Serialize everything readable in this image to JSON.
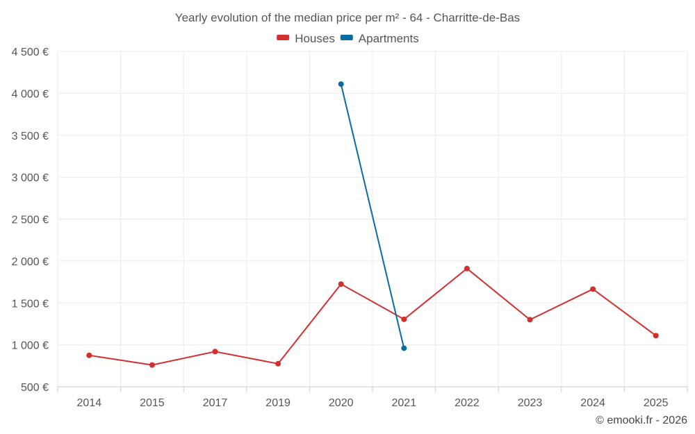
{
  "chart_data": {
    "type": "line",
    "title": "Yearly evolution of the median price per m² - 64 - Charritte-de-Bas",
    "categories": [
      "2014",
      "2015",
      "2017",
      "2019",
      "2020",
      "2021",
      "2022",
      "2023",
      "2024",
      "2025"
    ],
    "series": [
      {
        "name": "Houses",
        "color": "#d32f2f",
        "values": [
          875,
          760,
          920,
          775,
          1725,
          1305,
          1910,
          1300,
          1665,
          1110
        ]
      },
      {
        "name": "Apartments",
        "color": "#0a6aa1",
        "values": [
          null,
          null,
          null,
          null,
          4110,
          960,
          null,
          null,
          null,
          null
        ]
      }
    ],
    "ylim": [
      500,
      4500
    ],
    "yticks": [
      500,
      1000,
      1500,
      2000,
      2500,
      3000,
      3500,
      4000,
      4500
    ],
    "ytick_labels": [
      "500 €",
      "1 000 €",
      "1 500 €",
      "2 000 €",
      "2 500 €",
      "3 000 €",
      "3 500 €",
      "4 000 €",
      "4 500 €"
    ],
    "legend_position": "top-center",
    "grid": true
  },
  "credit": "© emooki.fr - 2026"
}
